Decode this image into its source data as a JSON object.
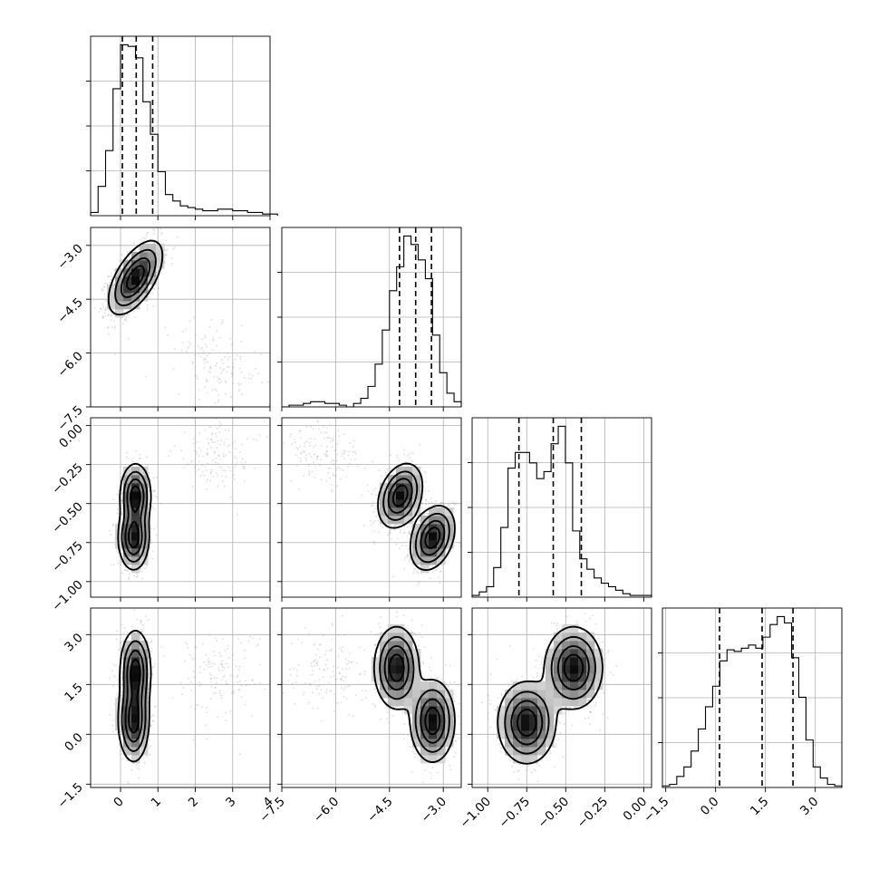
{
  "chart_data": {
    "type": "corner",
    "n_params": 4,
    "grid": true,
    "params": [
      {
        "range": [
          -0.8,
          4
        ],
        "ticks": [
          0,
          1,
          2,
          3,
          4
        ],
        "tick_labels": [
          "0",
          "1",
          "2",
          "3",
          "4"
        ],
        "y_ticks": [],
        "y_tick_labels": [],
        "quantiles": [
          0.05,
          0.42,
          0.86
        ],
        "hist": {
          "start": -0.8,
          "width": 0.2,
          "counts": [
            2,
            18,
            40,
            78,
            105,
            104,
            97,
            70,
            50,
            27,
            13,
            9,
            6,
            5,
            4,
            3,
            3,
            4,
            4,
            3,
            3,
            2,
            2,
            1,
            1
          ]
        }
      },
      {
        "range": [
          -7.5,
          -2.5
        ],
        "ticks": [
          -7.5,
          -6.0,
          -4.5,
          -3.0
        ],
        "tick_labels": [
          "−7.5",
          "−6.0",
          "−4.5",
          "−3.0"
        ],
        "y_ticks": [
          -7.5,
          -6.0,
          -4.5,
          -3.0
        ],
        "y_tick_labels": [
          "−7.5",
          "−6.0",
          "−4.5",
          "−3.0"
        ],
        "quantiles": [
          -4.22,
          -3.77,
          -3.33
        ],
        "hist": {
          "start": -7.5,
          "width": 0.2,
          "counts": [
            0,
            1,
            1,
            2,
            3,
            3,
            2,
            2,
            1,
            0,
            2,
            5,
            12,
            25,
            45,
            68,
            82,
            100,
            95,
            86,
            75,
            42,
            20,
            8,
            3
          ]
        }
      },
      {
        "range": [
          -1.1,
          0.05
        ],
        "ticks": [
          -1.0,
          -0.75,
          -0.5,
          -0.25,
          0.0
        ],
        "tick_labels": [
          "−1.00",
          "−0.75",
          "−0.50",
          "−0.25",
          "0.00"
        ],
        "y_ticks": [
          -1.0,
          -0.75,
          -0.5,
          -0.25,
          0.0
        ],
        "y_tick_labels": [
          "−1.00",
          "−0.75",
          "−0.50",
          "−0.25",
          "0.00"
        ],
        "quantiles": [
          -0.8,
          -0.58,
          -0.4
        ],
        "hist": {
          "start": -1.1,
          "width": 0.046,
          "counts": [
            1,
            3,
            6,
            17,
            40,
            74,
            83,
            83,
            77,
            68,
            72,
            88,
            98,
            77,
            38,
            22,
            16,
            11,
            8,
            6,
            4,
            2,
            1,
            1,
            1
          ]
        }
      },
      {
        "range": [
          -1.6,
          3.8
        ],
        "ticks": [
          -1.5,
          0.0,
          1.5,
          3.0
        ],
        "tick_labels": [
          "−1.5",
          "0.0",
          "1.5",
          "3.0"
        ],
        "y_ticks": [
          -1.5,
          0.0,
          1.5,
          3.0
        ],
        "y_tick_labels": [
          "−1.5",
          "0.0",
          "1.5",
          "3.0"
        ],
        "quantiles": [
          0.12,
          1.4,
          2.33
        ],
        "hist": {
          "start": -1.6,
          "width": 0.216,
          "counts": [
            1,
            2,
            7,
            13,
            23,
            37,
            51,
            64,
            80,
            87,
            86,
            88,
            90,
            88,
            95,
            103,
            108,
            104,
            82,
            57,
            30,
            13,
            6,
            2,
            1
          ]
        }
      }
    ],
    "pairs": [
      {
        "row": 1,
        "col": 0,
        "components": [
          {
            "cx": 0.4,
            "cy": -3.9,
            "sx": 0.35,
            "sy": 0.5,
            "r": 0.6,
            "w": 0.9
          },
          {
            "cx": 2.6,
            "cy": -6.3,
            "sx": 0.6,
            "sy": 0.55,
            "r": -0.4,
            "w": 0.1
          }
        ]
      },
      {
        "row": 2,
        "col": 0,
        "components": [
          {
            "cx": 0.4,
            "cy": -0.45,
            "sx": 0.2,
            "sy": 0.1,
            "r": 0.0,
            "w": 0.45
          },
          {
            "cx": 0.35,
            "cy": -0.72,
            "sx": 0.2,
            "sy": 0.1,
            "r": 0.0,
            "w": 0.45
          },
          {
            "cx": 2.6,
            "cy": -0.2,
            "sx": 0.6,
            "sy": 0.12,
            "r": 0.0,
            "w": 0.1
          }
        ]
      },
      {
        "row": 2,
        "col": 1,
        "components": [
          {
            "cx": -4.2,
            "cy": -0.45,
            "sx": 0.3,
            "sy": 0.1,
            "r": 0.3,
            "w": 0.45
          },
          {
            "cx": -3.3,
            "cy": -0.72,
            "sx": 0.3,
            "sy": 0.1,
            "r": 0.3,
            "w": 0.45
          },
          {
            "cx": -6.3,
            "cy": -0.2,
            "sx": 0.55,
            "sy": 0.12,
            "r": -0.3,
            "w": 0.1
          }
        ]
      },
      {
        "row": 3,
        "col": 0,
        "components": [
          {
            "cx": 0.4,
            "cy": 1.9,
            "sx": 0.2,
            "sy": 0.6,
            "r": 0.0,
            "w": 0.45
          },
          {
            "cx": 0.35,
            "cy": 0.4,
            "sx": 0.2,
            "sy": 0.6,
            "r": 0.0,
            "w": 0.45
          },
          {
            "cx": 2.6,
            "cy": 1.8,
            "sx": 0.6,
            "sy": 0.7,
            "r": 0.0,
            "w": 0.1
          }
        ]
      },
      {
        "row": 3,
        "col": 1,
        "components": [
          {
            "cx": -4.3,
            "cy": 2.0,
            "sx": 0.3,
            "sy": 0.6,
            "r": 0.0,
            "w": 0.45
          },
          {
            "cx": -3.3,
            "cy": 0.4,
            "sx": 0.3,
            "sy": 0.6,
            "r": 0.0,
            "w": 0.45
          },
          {
            "cx": -6.2,
            "cy": 2.0,
            "sx": 0.55,
            "sy": 0.7,
            "r": 0.0,
            "w": 0.1
          }
        ]
      },
      {
        "row": 3,
        "col": 2,
        "components": [
          {
            "cx": -0.45,
            "cy": 2.0,
            "sx": 0.09,
            "sy": 0.6,
            "r": 0.0,
            "w": 0.5
          },
          {
            "cx": -0.75,
            "cy": 0.35,
            "sx": 0.09,
            "sy": 0.6,
            "r": 0.0,
            "w": 0.5
          }
        ]
      }
    ]
  }
}
